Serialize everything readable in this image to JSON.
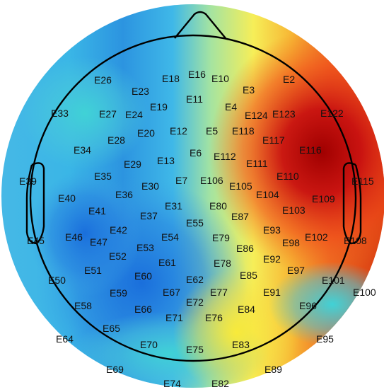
{
  "electrodes": [
    {
      "label": "E2"
    },
    {
      "label": "E3"
    },
    {
      "label": "E4"
    },
    {
      "label": "E5"
    },
    {
      "label": "E6"
    },
    {
      "label": "E7"
    },
    {
      "label": "E10"
    },
    {
      "label": "E11"
    },
    {
      "label": "E12"
    },
    {
      "label": "E13"
    },
    {
      "label": "E16"
    },
    {
      "label": "E18"
    },
    {
      "label": "E19"
    },
    {
      "label": "E20"
    },
    {
      "label": "E23"
    },
    {
      "label": "E24"
    },
    {
      "label": "E26"
    },
    {
      "label": "E27"
    },
    {
      "label": "E28"
    },
    {
      "label": "E29"
    },
    {
      "label": "E30"
    },
    {
      "label": "E31"
    },
    {
      "label": "E33"
    },
    {
      "label": "E34"
    },
    {
      "label": "E35"
    },
    {
      "label": "E36"
    },
    {
      "label": "E37"
    },
    {
      "label": "E39"
    },
    {
      "label": "E40"
    },
    {
      "label": "E41"
    },
    {
      "label": "E42"
    },
    {
      "label": "E45"
    },
    {
      "label": "E46"
    },
    {
      "label": "E47"
    },
    {
      "label": "E50"
    },
    {
      "label": "E51"
    },
    {
      "label": "E52"
    },
    {
      "label": "E53"
    },
    {
      "label": "E54"
    },
    {
      "label": "E55"
    },
    {
      "label": "E58"
    },
    {
      "label": "E59"
    },
    {
      "label": "E60"
    },
    {
      "label": "E61"
    },
    {
      "label": "E62"
    },
    {
      "label": "E64"
    },
    {
      "label": "E65"
    },
    {
      "label": "E66"
    },
    {
      "label": "E67"
    },
    {
      "label": "E69"
    },
    {
      "label": "E70"
    },
    {
      "label": "E71"
    },
    {
      "label": "E72"
    },
    {
      "label": "E74"
    },
    {
      "label": "E75"
    },
    {
      "label": "E76"
    },
    {
      "label": "E77"
    },
    {
      "label": "E78"
    },
    {
      "label": "E79"
    },
    {
      "label": "E80"
    },
    {
      "label": "E82"
    },
    {
      "label": "E83"
    },
    {
      "label": "E84"
    },
    {
      "label": "E85"
    },
    {
      "label": "E86"
    },
    {
      "label": "E87"
    },
    {
      "label": "E89"
    },
    {
      "label": "E91"
    },
    {
      "label": "E92"
    },
    {
      "label": "E93"
    },
    {
      "label": "E95"
    },
    {
      "label": "E96"
    },
    {
      "label": "E97"
    },
    {
      "label": "E98"
    },
    {
      "label": "E100"
    },
    {
      "label": "E101"
    },
    {
      "label": "E102"
    },
    {
      "label": "E103"
    },
    {
      "label": "E104"
    },
    {
      "label": "E105"
    },
    {
      "label": "E106"
    },
    {
      "label": "E108"
    },
    {
      "label": "E109"
    },
    {
      "label": "E110"
    },
    {
      "label": "E111"
    },
    {
      "label": "E112"
    },
    {
      "label": "E115"
    },
    {
      "label": "E116"
    },
    {
      "label": "E117"
    },
    {
      "label": "E118"
    },
    {
      "label": "E122"
    },
    {
      "label": "E123"
    },
    {
      "label": "E124"
    }
  ],
  "colormap": {
    "low": "#1f7ae0",
    "mid_low": "#33c6e8",
    "mid": "#e8f060",
    "mid_high": "#f59a1f",
    "high": "#a40000"
  },
  "outline_color": "#000000",
  "label_color": "#111111"
}
